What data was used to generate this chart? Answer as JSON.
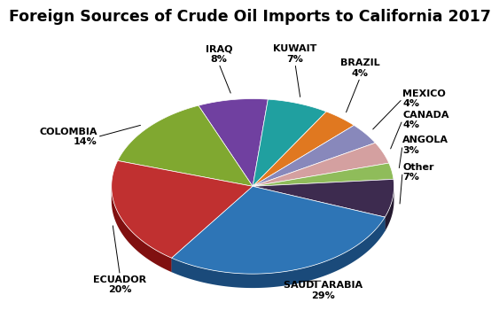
{
  "title": "Foreign Sources of Crude Oil Imports to California 2017",
  "slices": [
    {
      "label": "SAUDI ARABIA",
      "pct": 29,
      "color": "#2E75B6",
      "dark": "#1A4A7A"
    },
    {
      "label": "Other",
      "pct": 7,
      "color": "#3D2B4F",
      "dark": "#251A30"
    },
    {
      "label": "ANGOLA",
      "pct": 3,
      "color": "#8FBC5A",
      "dark": "#5A7A30"
    },
    {
      "label": "CANADA",
      "pct": 4,
      "color": "#D4A0A0",
      "dark": "#A06060"
    },
    {
      "label": "MEXICO",
      "pct": 4,
      "color": "#8888BB",
      "dark": "#555588"
    },
    {
      "label": "BRAZIL",
      "pct": 4,
      "color": "#E07820",
      "dark": "#A05010"
    },
    {
      "label": "KUWAIT",
      "pct": 7,
      "color": "#20A0A0",
      "dark": "#106060"
    },
    {
      "label": "IRAQ",
      "pct": 8,
      "color": "#7040A0",
      "dark": "#402060"
    },
    {
      "label": "COLOMBIA",
      "pct": 14,
      "color": "#80A830",
      "dark": "#4A6010"
    },
    {
      "label": "ECUADOR",
      "pct": 20,
      "color": "#C03030",
      "dark": "#801010"
    }
  ],
  "title_fontsize": 12.5,
  "label_fontsize": 8,
  "label_positions": {
    "SAUDI ARABIA": [
      0.52,
      -0.72,
      "center",
      "top"
    ],
    "Other": [
      1.08,
      0.05,
      "left",
      "center"
    ],
    "ANGOLA": [
      1.08,
      0.24,
      "left",
      "center"
    ],
    "CANADA": [
      1.08,
      0.42,
      "left",
      "center"
    ],
    "MEXICO": [
      1.08,
      0.57,
      "left",
      "center"
    ],
    "BRAZIL": [
      0.78,
      0.72,
      "center",
      "bottom"
    ],
    "KUWAIT": [
      0.32,
      0.82,
      "center",
      "bottom"
    ],
    "IRAQ": [
      -0.22,
      0.82,
      "center",
      "bottom"
    ],
    "COLOMBIA": [
      -1.08,
      0.3,
      "right",
      "center"
    ],
    "ECUADOR": [
      -0.92,
      -0.68,
      "center",
      "top"
    ]
  }
}
